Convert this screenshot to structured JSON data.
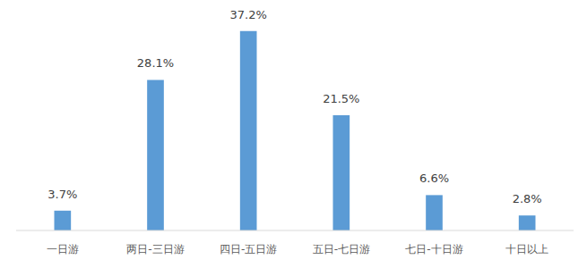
{
  "chart_data": {
    "type": "bar",
    "categories": [
      "一日游",
      "两日-三日游",
      "四日-五日游",
      "五日-七日游",
      "七日-十日游",
      "十日以上"
    ],
    "values": [
      3.7,
      28.1,
      37.2,
      21.5,
      6.6,
      2.8
    ],
    "value_labels": [
      "3.7%",
      "28.1%",
      "37.2%",
      "21.5%",
      "6.6%",
      "2.8%"
    ],
    "color": "#5b9bd5",
    "ylim": [
      0,
      40
    ],
    "grid": false,
    "data_labels": true,
    "tick_labels": "x"
  }
}
